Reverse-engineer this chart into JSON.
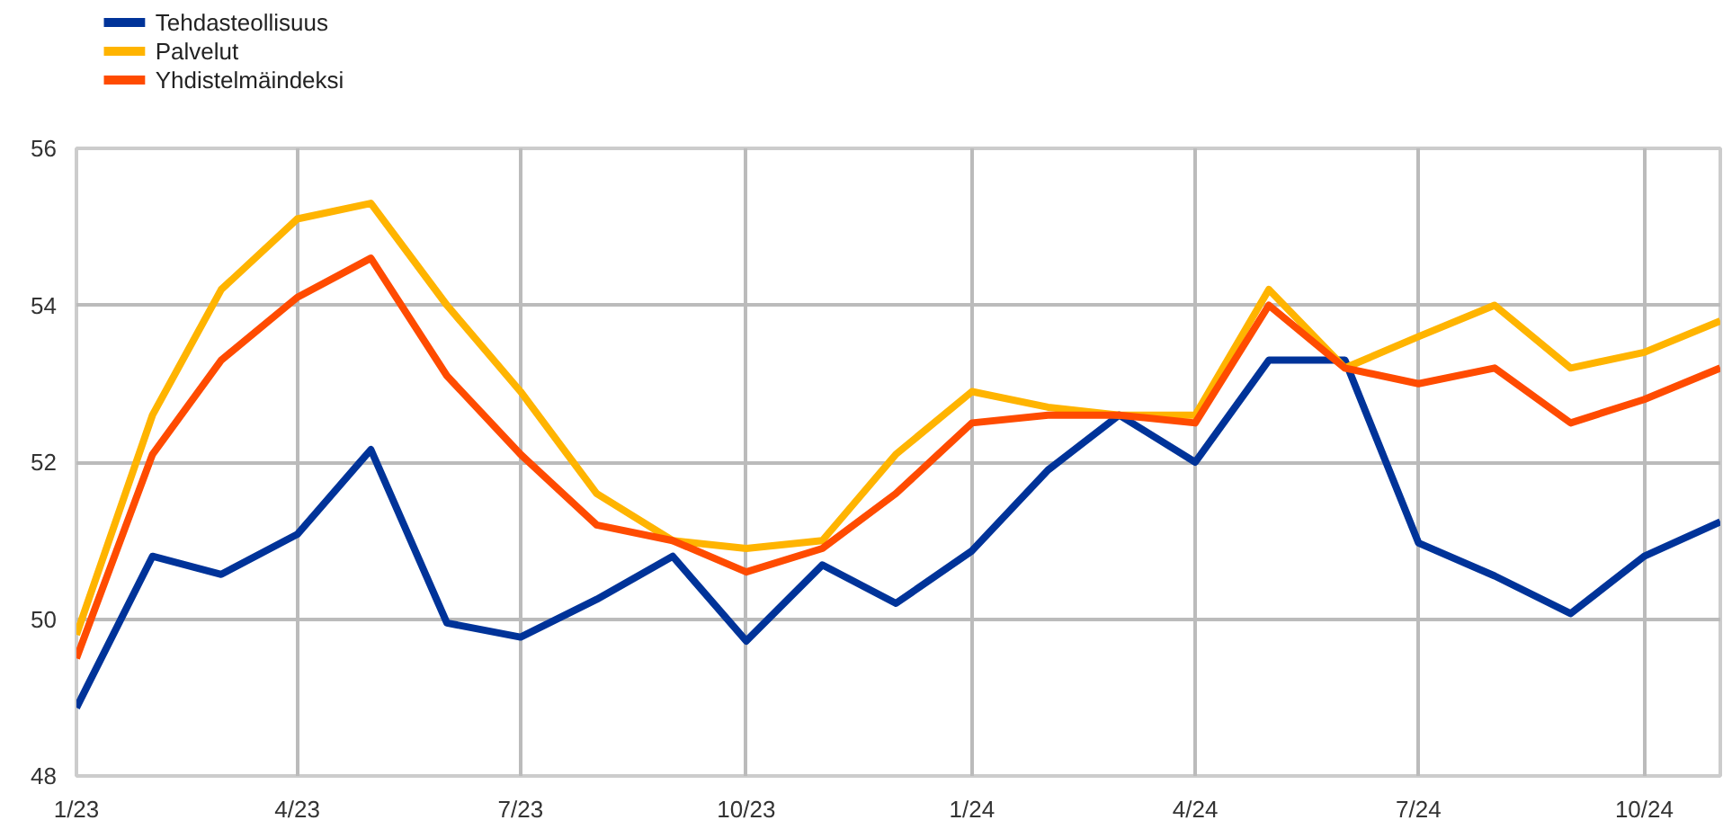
{
  "chart_data": {
    "type": "line",
    "x": [
      "2023-01",
      "2023-02",
      "2023-03",
      "2023-04",
      "2023-05",
      "2023-06",
      "2023-07",
      "2023-08",
      "2023-09",
      "2023-10",
      "2023-11",
      "2023-12",
      "2024-01",
      "2024-02",
      "2024-03",
      "2024-04",
      "2024-05",
      "2024-06",
      "2024-07",
      "2024-08",
      "2024-09",
      "2024-10",
      "2024-11"
    ],
    "series": [
      {
        "name": "Tehdasteollisuus",
        "color": "#003399",
        "values": [
          48.87,
          50.8,
          50.57,
          51.08,
          52.16,
          49.95,
          49.77,
          50.25,
          50.8,
          49.72,
          50.69,
          50.2,
          50.87,
          51.9,
          52.6,
          52.0,
          53.3,
          53.3,
          50.97,
          50.55,
          50.07,
          50.8,
          51.24
        ]
      },
      {
        "name": "Palvelut",
        "color": "#ffb400",
        "values": [
          49.8,
          52.6,
          54.2,
          55.1,
          55.3,
          54.0,
          52.9,
          51.6,
          51.0,
          50.9,
          51.0,
          52.1,
          52.9,
          52.7,
          52.6,
          52.6,
          54.2,
          53.2,
          53.6,
          54.0,
          53.2,
          53.4,
          53.8
        ]
      },
      {
        "name": "Yhdistelmäindeksi",
        "color": "#ff4b00",
        "values": [
          49.5,
          52.1,
          53.3,
          54.1,
          54.6,
          53.1,
          52.1,
          51.2,
          51.0,
          50.6,
          50.9,
          51.6,
          52.5,
          52.6,
          52.6,
          52.5,
          54.0,
          53.2,
          53.0,
          53.2,
          52.5,
          52.8,
          53.2
        ]
      }
    ],
    "xlim": [
      "2023-01",
      "2024-11"
    ],
    "xticks": [
      {
        "value": "2023-01",
        "label": "1/23"
      },
      {
        "value": "2023-04",
        "label": "4/23"
      },
      {
        "value": "2023-07",
        "label": "7/23"
      },
      {
        "value": "2023-10",
        "label": "10/23"
      },
      {
        "value": "2024-01",
        "label": "1/24"
      },
      {
        "value": "2024-04",
        "label": "4/24"
      },
      {
        "value": "2024-07",
        "label": "7/24"
      },
      {
        "value": "2024-10",
        "label": "10/24"
      }
    ],
    "ylim": [
      48,
      56
    ],
    "yticks": [
      48,
      50,
      52,
      54,
      56
    ],
    "grid": true,
    "legend": "top left",
    "line_style": "solid",
    "marker": "none"
  }
}
